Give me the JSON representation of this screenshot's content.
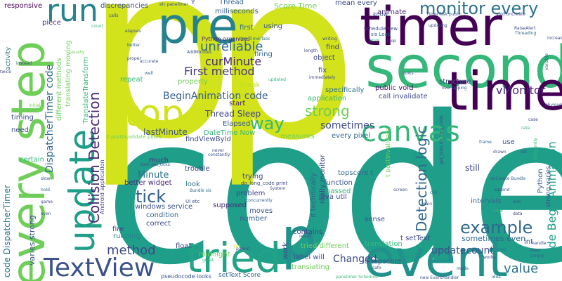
{
  "words": [
    {
      "text": "code",
      "color": "#1f9e89"
    },
    {
      "text": "p",
      "color": "#d2e21b"
    },
    {
      "text": "p",
      "color": "#d2e21b"
    },
    {
      "text": "second",
      "color": "#35b779"
    },
    {
      "text": "timer",
      "color": "#440154"
    },
    {
      "text": "every step",
      "color": "#6ece58"
    },
    {
      "text": "update",
      "color": "#1f9e89"
    },
    {
      "text": "event",
      "color": "#21918c"
    },
    {
      "text": "pre",
      "color": "#26828e"
    },
    {
      "text": "time",
      "color": "#440154"
    },
    {
      "text": "stop",
      "color": "#d2e21b"
    },
    {
      "text": "run",
      "color": "#26828e"
    },
    {
      "text": "tried",
      "color": "#20a386"
    },
    {
      "text": "TextView",
      "color": "#3b528b"
    },
    {
      "text": "canvas",
      "color": "#35b779"
    },
    {
      "text": "p",
      "color": "#21918c"
    },
    {
      "text": "Collision Detection",
      "color": "#482878"
    },
    {
      "text": "Detection logic",
      "color": "#31688e"
    },
    {
      "text": "monitor every",
      "color": "#2c728e"
    },
    {
      "text": "tick",
      "color": "#355f8d"
    },
    {
      "text": "way",
      "color": "#35b779"
    },
    {
      "text": "strong",
      "color": "#6ece58"
    },
    {
      "text": "example",
      "color": "#31688e"
    },
    {
      "text": "method",
      "color": "#3e4989"
    },
    {
      "text": "value",
      "color": "#2c728e"
    },
    {
      "text": "curMinute",
      "color": "#482878"
    },
    {
      "text": "unreliable",
      "color": "#31688e"
    },
    {
      "text": "First method",
      "color": "#463480"
    },
    {
      "text": "BeginAnimation code",
      "color": "#355f8d"
    },
    {
      "text": "sometimes",
      "color": "#3e4989"
    },
    {
      "text": "Thread Sleep",
      "color": "#404688"
    },
    {
      "text": "lastMinute",
      "color": "#3b528b"
    },
    {
      "text": "DispatcherTimer code",
      "color": "#31688e"
    },
    {
      "text": "Minute",
      "color": "#2c728e"
    },
    {
      "text": "code BeginAnimation",
      "color": "#1f9e89"
    },
    {
      "text": "vMonitor",
      "color": "#482878"
    },
    {
      "text": "updatecount",
      "color": "#3b528b"
    },
    {
      "text": "Changed",
      "color": "#3e4989"
    },
    {
      "text": "sometimes even",
      "color": "#31688e"
    },
    {
      "text": "code DispatcherTimer",
      "color": "#2c728e"
    },
    {
      "text": "varies strong",
      "color": "#3b528b"
    },
    {
      "text": "responsive",
      "color": "#440154"
    },
    {
      "text": "discrepancies",
      "color": "#3b528b"
    },
    {
      "text": "Thread",
      "color": "#31688e"
    },
    {
      "text": "milliseconds",
      "color": "#355f8d"
    },
    {
      "text": "Score Time",
      "color": "#6ece58"
    },
    {
      "text": "mean every",
      "color": "#3e4989"
    },
    {
      "text": "piece",
      "color": "#472d7b"
    },
    {
      "text": "animate",
      "color": "#482878"
    },
    {
      "text": "using",
      "color": "#3b528b"
    },
    {
      "text": "first",
      "color": "#2c728e"
    },
    {
      "text": "find",
      "color": "#404688"
    },
    {
      "text": "object",
      "color": "#3e4989"
    },
    {
      "text": "fix",
      "color": "#3b528b"
    },
    {
      "text": "firing",
      "color": "#31688e"
    },
    {
      "text": "repeat",
      "color": "#35b779"
    },
    {
      "text": "property",
      "color": "#6ece58"
    },
    {
      "text": "break",
      "color": "#bddf26"
    },
    {
      "text": "start",
      "color": "#481f70"
    },
    {
      "text": "application",
      "color": "#35b779"
    },
    {
      "text": "public void",
      "color": "#471063"
    },
    {
      "text": "structure",
      "color": "#3b528b"
    },
    {
      "text": "specifically",
      "color": "#2c728e"
    },
    {
      "text": "call invalidate",
      "color": "#3e4989"
    },
    {
      "text": "every pixel",
      "color": "#31688e"
    },
    {
      "text": "Elapsed",
      "color": "#3b528b"
    },
    {
      "text": "DateTime Now",
      "color": "#35b779"
    },
    {
      "text": "measures",
      "color": "#6ece58"
    },
    {
      "text": "findViewById",
      "color": "#3e4989"
    },
    {
      "text": "much",
      "color": "#472d7b"
    },
    {
      "text": "trouble",
      "color": "#404688"
    },
    {
      "text": "look",
      "color": "#2c728e"
    },
    {
      "text": "better widget",
      "color": "#482878"
    },
    {
      "text": "windows service",
      "color": "#3b528b"
    },
    {
      "text": "condition",
      "color": "#31688e"
    },
    {
      "text": "correct",
      "color": "#3e4989"
    },
    {
      "text": "fire",
      "color": "#404688"
    },
    {
      "text": "running",
      "color": "#26828e"
    },
    {
      "text": "float",
      "color": "#3e4989"
    },
    {
      "text": "midnight",
      "color": "#6ece58"
    },
    {
      "text": "supposed",
      "color": "#472d7b"
    },
    {
      "text": "moves",
      "color": "#3b528b"
    },
    {
      "text": "number",
      "color": "#355f8d"
    },
    {
      "text": "problem",
      "color": "#3e4989"
    },
    {
      "text": "trying",
      "color": "#404688"
    },
    {
      "text": "topscore t",
      "color": "#31688e"
    },
    {
      "text": "function",
      "color": "#3b528b"
    },
    {
      "text": "passed",
      "color": "#35b779"
    },
    {
      "text": "java util",
      "color": "#3e4989"
    },
    {
      "text": "task",
      "color": "#1f9e89"
    },
    {
      "text": "contains",
      "color": "#3e4989"
    },
    {
      "text": "tried different",
      "color": "#6ece58"
    },
    {
      "text": "label will",
      "color": "#3b528b"
    },
    {
      "text": "translating",
      "color": "#6ece58"
    },
    {
      "text": "work",
      "color": "#404688"
    },
    {
      "text": "translation",
      "color": "#35b779"
    },
    {
      "text": "sense",
      "color": "#3b528b"
    },
    {
      "text": "t setText",
      "color": "#3e4989"
    },
    {
      "text": "intervals",
      "color": "#31688e"
    },
    {
      "text": "int",
      "color": "#3b528b"
    },
    {
      "text": "still",
      "color": "#3e4989"
    },
    {
      "text": "use",
      "color": "#3b528b"
    },
    {
      "text": "Python",
      "color": "#355f8d"
    },
    {
      "text": "need",
      "color": "#3e4989"
    },
    {
      "text": "certain",
      "color": "#35b779"
    },
    {
      "text": "timing",
      "color": "#3b528b"
    },
    {
      "text": "activity",
      "color": "#2c728e"
    },
    {
      "text": "TranslateTransform",
      "color": "#35b779"
    },
    {
      "text": "translating moving",
      "color": "#6ece58"
    },
    {
      "text": "different methods",
      "color": "#6ece58"
    },
    {
      "text": "io topscore",
      "color": "#3b528b"
    },
    {
      "text": "setText Score",
      "color": "#31688e"
    },
    {
      "text": "really monitor",
      "color": "#3e4989"
    },
    {
      "text": "it technically",
      "color": "#355f8d"
    },
    {
      "text": "t postInvalidate",
      "color": "#6ece58"
    },
    {
      "text": "strong varies",
      "color": "#3b528b"
    },
    {
      "text": "Android application",
      "color": "#3e4989"
    },
    {
      "text": "pseudocode looks",
      "color": "#3b528b"
    },
    {
      "text": "Python organizes",
      "color": "#482878"
    },
    {
      "text": "schedule new",
      "color": "#3e4989"
    },
    {
      "text": "sis Load",
      "color": "#31688e"
    },
    {
      "text": "TimerTask public",
      "color": "#3b528b"
    },
    {
      "text": "void onCreate",
      "color": "#3e4989"
    },
    {
      "text": "know",
      "color": "#3b528b"
    },
    {
      "text": "X postInvalidate public",
      "color": "#6ece58"
    },
    {
      "text": "do_long_code print",
      "color": "#3e4989"
    },
    {
      "text": "onCreate Bundle",
      "color": "#355f8d"
    },
    {
      "text": "Y",
      "color": "#3e4989"
    },
    {
      "text": "elc panelimer",
      "color": "#3b528b"
    },
    {
      "text": "new TimerTask",
      "color": "#2c728e"
    },
    {
      "text": "RaiseAlert",
      "color": "#3e4989"
    },
    {
      "text": "Threading",
      "color": "#31688e"
    },
    {
      "text": "updating",
      "color": "#3b528b"
    },
    {
      "text": "new EventHandler",
      "color": "#3b528b"
    },
    {
      "text": "UI etc",
      "color": "#3e4989"
    },
    {
      "text": "Bundle sis",
      "color": "#31688e"
    },
    {
      "text": "took get_ticks",
      "color": "#3b528b"
    },
    {
      "text": "get_ticks do_long_code",
      "color": "#3e4989"
    },
    {
      "text": "panelimer Schedule",
      "color": "#35b779"
    },
    {
      "text": "constantly",
      "color": "#3b528b"
    },
    {
      "text": "never",
      "color": "#3e4989"
    },
    {
      "text": "System",
      "color": "#3b528b"
    },
    {
      "text": "concurrently",
      "color": "#355f8d"
    },
    {
      "text": "parent",
      "color": "#3e4989"
    },
    {
      "text": "result",
      "color": "#3b528b"
    },
    {
      "text": "simply",
      "color": "#31688e"
    },
    {
      "text": "handle",
      "color": "#3e4989"
    },
    {
      "text": "safe",
      "color": "#3b528b"
    },
    {
      "text": "great",
      "color": "#35b779"
    },
    {
      "text": "yes",
      "color": "#d2e21b"
    },
    {
      "text": "loop",
      "color": "#3e4989"
    },
    {
      "text": "error",
      "color": "#35b779"
    },
    {
      "text": "writing",
      "color": "#3b528b"
    },
    {
      "text": "length",
      "color": "#3e4989"
    },
    {
      "text": "elapses",
      "color": "#3b528b"
    },
    {
      "text": "better",
      "color": "#31688e"
    },
    {
      "text": "accurate",
      "color": "#3b528b"
    },
    {
      "text": "updated",
      "color": "#35b779"
    },
    {
      "text": "twice",
      "color": "#3e4989"
    },
    {
      "text": "overlapping",
      "color": "#3b528b"
    },
    {
      "text": "increases",
      "color": "#3e4989"
    },
    {
      "text": "variable",
      "color": "#31688e"
    },
    {
      "text": "obviously",
      "color": "#3b528b"
    },
    {
      "text": "frequently",
      "color": "#35b779"
    },
    {
      "text": "instead",
      "color": "#3e4989"
    },
    {
      "text": "initially",
      "color": "#6ece58"
    },
    {
      "text": "AddMinutes",
      "color": "#3b528b"
    },
    {
      "text": "proper",
      "color": "#3e4989"
    },
    {
      "text": "well",
      "color": "#31688e"
    },
    {
      "text": "calls",
      "color": "#3b528b"
    },
    {
      "text": "count",
      "color": "#35b779"
    },
    {
      "text": "usually",
      "color": "#6ece58"
    },
    {
      "text": "immediately",
      "color": "#3e4989"
    },
    {
      "text": "looks",
      "color": "#3b528b"
    },
    {
      "text": "frame",
      "color": "#31688e"
    },
    {
      "text": "drawn",
      "color": "#3e4989"
    },
    {
      "text": "set",
      "color": "#3b528b"
    },
    {
      "text": "rate",
      "color": "#35b779"
    },
    {
      "text": "case",
      "color": "#3e4989"
    },
    {
      "text": "slow",
      "color": "#3b528b"
    },
    {
      "text": "hold",
      "color": "#31688e"
    },
    {
      "text": "game",
      "color": "#3e4989"
    },
    {
      "text": "even",
      "color": "#3b528b"
    },
    {
      "text": "thus",
      "color": "#35b779"
    },
    {
      "text": "screen",
      "color": "#3e4989"
    },
    {
      "text": "main",
      "color": "#3b528b"
    },
    {
      "text": "call",
      "color": "#31688e"
    },
    {
      "text": "second",
      "color": "#3e4989"
    },
    {
      "text": "one",
      "color": "#3b528b"
    },
    {
      "text": "view",
      "color": "#35b779"
    },
    {
      "text": "data",
      "color": "#3e4989"
    },
    {
      "text": "mode",
      "color": "#3b528b"
    },
    {
      "text": "idea",
      "color": "#31688e"
    },
    {
      "text": "works",
      "color": "#3e4989"
    },
    {
      "text": "reset",
      "color": "#3b528b"
    }
  ]
}
